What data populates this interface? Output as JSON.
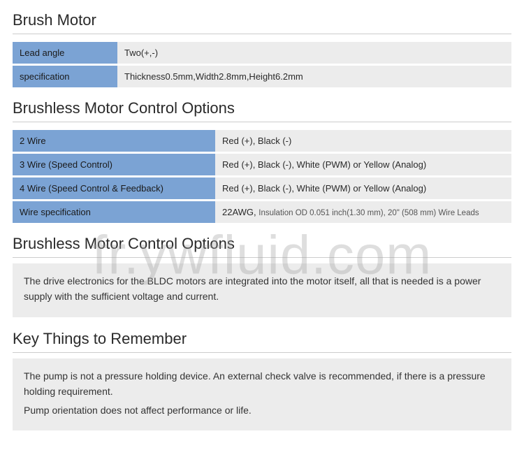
{
  "colors": {
    "label_bg": "#7ba3d4",
    "value_bg": "#ececec",
    "title_color": "#2a2a2a",
    "value_text_primary": "#2a2a2a",
    "value_text_link": "#2b5b8c",
    "border_color": "#cccccc",
    "watermark_color": "rgba(160,160,160,0.35)"
  },
  "typography": {
    "title_fontsize": 22,
    "title_weight": 300,
    "body_fontsize": 13,
    "info_fontsize": 14
  },
  "sections": {
    "brush_motor": {
      "title": "Brush Motor",
      "rows": [
        {
          "label": "Lead angle",
          "value": "Two(+,-)"
        },
        {
          "label": "specification",
          "value": "Thickness0.5mm,Width2.8mm,Height6.2mm"
        }
      ]
    },
    "bldc_options": {
      "title": "Brushless Motor Control Options",
      "rows": [
        {
          "label": "2 Wire",
          "value": "Red (+), Black (-)"
        },
        {
          "label": "3 Wire (Speed Control)",
          "value": "Red (+), Black (-), White (PWM) or Yellow (Analog)"
        },
        {
          "label": "4 Wire (Speed Control & Feedback)",
          "value": "Red (+), Black (-), White (PWM) or Yellow (Analog)"
        },
        {
          "label": "Wire specification",
          "value_lead": "22AWG, ",
          "value_small": "Insulation OD 0.051 inch(1.30 mm), 20\" (508 mm) Wire Leads"
        }
      ]
    },
    "bldc_note": {
      "title": "Brushless Motor Control Options",
      "text": "The drive electronics for the BLDC motors are integrated into the motor itself, all that is needed is a power supply with the sufficient voltage and current."
    },
    "key_things": {
      "title": "Key Things to Remember",
      "lines": [
        "The pump is not a pressure holding device. An external check valve is recommended, if there is a pressure holding requirement.",
        "Pump orientation does not affect performance or life."
      ]
    }
  },
  "watermark": "fr.ywfluid.com"
}
